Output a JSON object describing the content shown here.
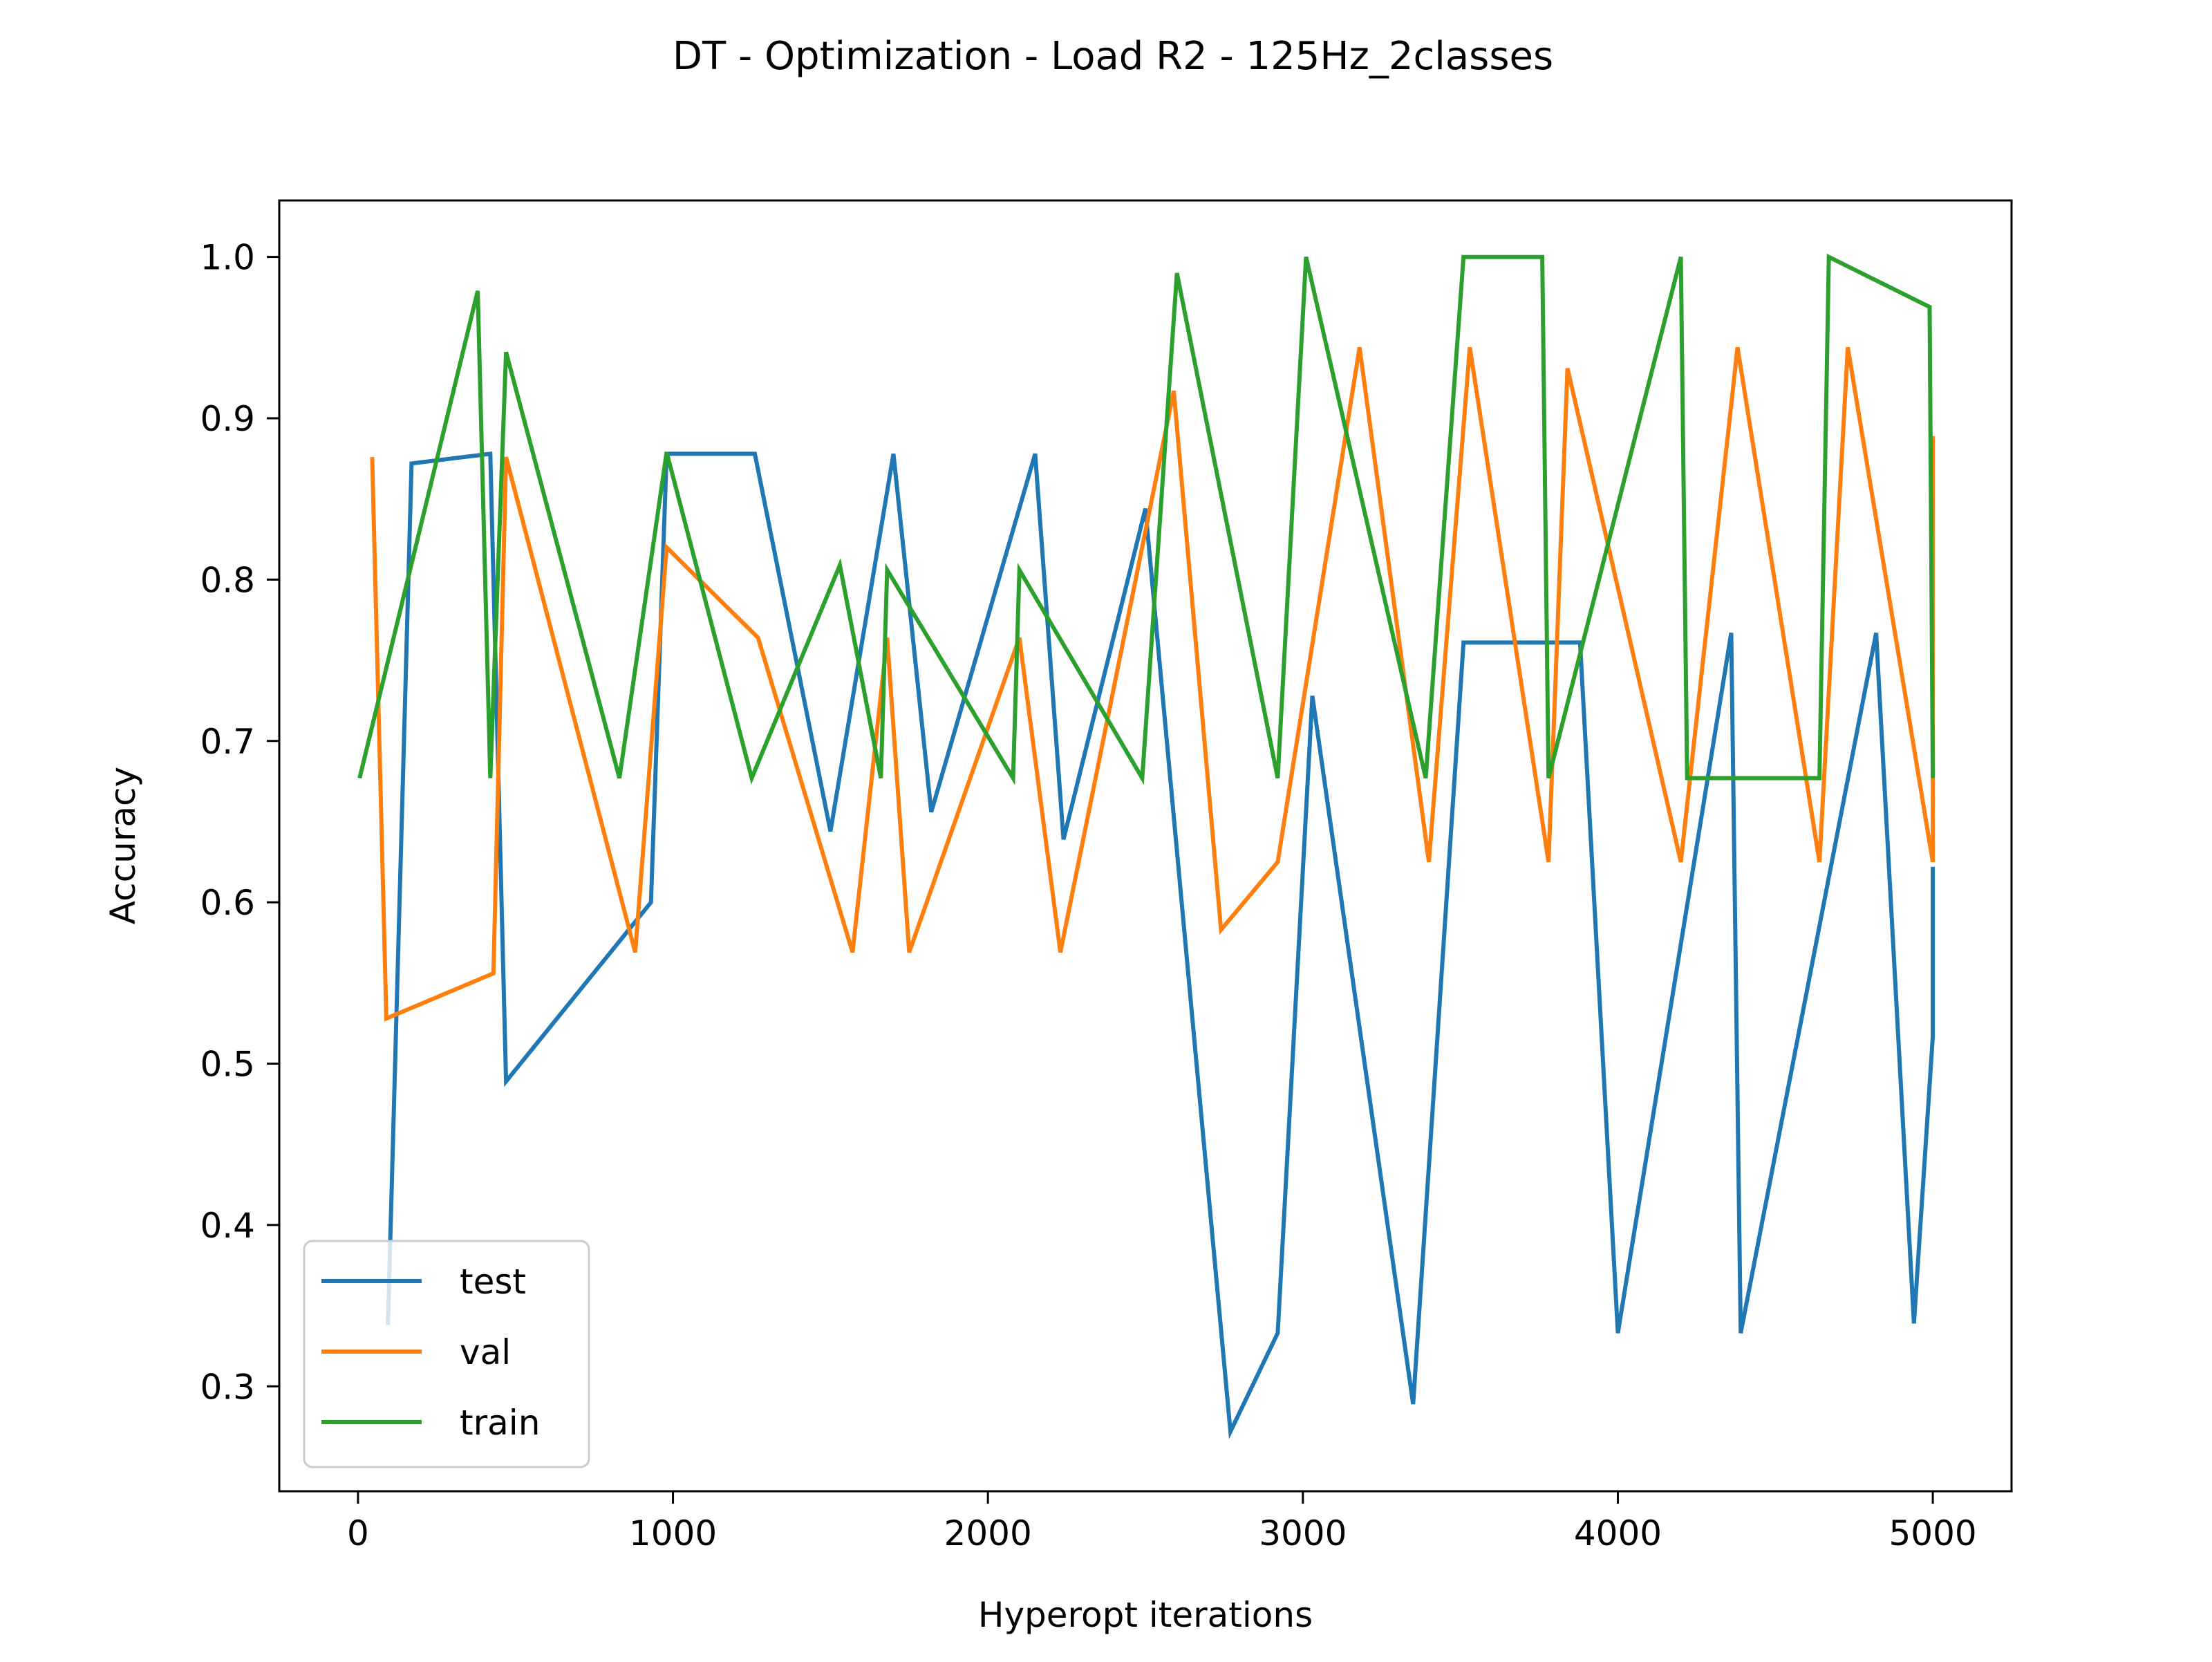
{
  "chart_data": {
    "type": "line",
    "title": "DT - Optimization - Load R2 - 125Hz_2classes",
    "xlabel": "Hyperopt iterations",
    "ylabel": "Accuracy",
    "xlim": [
      -250,
      5250
    ],
    "ylim": [
      0.235,
      1.035
    ],
    "xticks": [
      0,
      1000,
      2000,
      3000,
      4000,
      5000
    ],
    "xtick_labels": [
      "0",
      "1000",
      "2000",
      "3000",
      "4000",
      "5000"
    ],
    "yticks": [
      0.3,
      0.4,
      0.5,
      0.6,
      0.7,
      0.8,
      0.9,
      1.0
    ],
    "ytick_labels": [
      "0.3",
      "0.4",
      "0.5",
      "0.6",
      "0.7",
      "0.8",
      "0.9",
      "1.0"
    ],
    "grid": false,
    "legend_position": "lower-left",
    "series": [
      {
        "name": "test",
        "color": "#1f77b4",
        "x": [
          95,
          170,
          420,
          470,
          930,
          980,
          1260,
          1500,
          1700,
          1820,
          2150,
          2240,
          2500,
          2770,
          2920,
          3030,
          3350,
          3510,
          3880,
          4000,
          4360,
          4390,
          4820,
          4940,
          5000,
          5000
        ],
        "y": [
          0.338,
          0.872,
          0.878,
          0.489,
          0.6,
          0.878,
          0.878,
          0.644,
          0.878,
          0.656,
          0.878,
          0.639,
          0.844,
          0.272,
          0.333,
          0.728,
          0.289,
          0.761,
          0.761,
          0.333,
          0.767,
          0.333,
          0.767,
          0.339,
          0.517,
          0.622
        ]
      },
      {
        "name": "val",
        "color": "#ff7f0e",
        "x": [
          45,
          90,
          430,
          470,
          880,
          980,
          1270,
          1570,
          1680,
          1750,
          2100,
          2230,
          2590,
          2740,
          2920,
          3180,
          3400,
          3530,
          3780,
          3840,
          4200,
          4380,
          4640,
          4730,
          5000,
          5000
        ],
        "y": [
          0.876,
          0.528,
          0.556,
          0.876,
          0.569,
          0.82,
          0.764,
          0.569,
          0.764,
          0.569,
          0.764,
          0.569,
          0.917,
          0.583,
          0.625,
          0.944,
          0.625,
          0.944,
          0.625,
          0.931,
          0.625,
          0.944,
          0.625,
          0.944,
          0.625,
          0.889
        ]
      },
      {
        "name": "train",
        "color": "#2ca02c",
        "x": [
          5,
          380,
          420,
          470,
          830,
          980,
          1250,
          1530,
          1660,
          1680,
          2080,
          2100,
          2490,
          2600,
          2920,
          3010,
          3390,
          3510,
          3760,
          3780,
          4200,
          4220,
          4640,
          4670,
          4990,
          5000,
          5000
        ],
        "y": [
          0.677,
          0.979,
          0.677,
          0.941,
          0.677,
          0.879,
          0.677,
          0.809,
          0.677,
          0.806,
          0.677,
          0.806,
          0.677,
          0.99,
          0.677,
          1.0,
          0.677,
          1.0,
          1.0,
          0.677,
          1.0,
          0.677,
          0.677,
          1.0,
          0.969,
          0.677,
          0.677
        ]
      }
    ]
  }
}
